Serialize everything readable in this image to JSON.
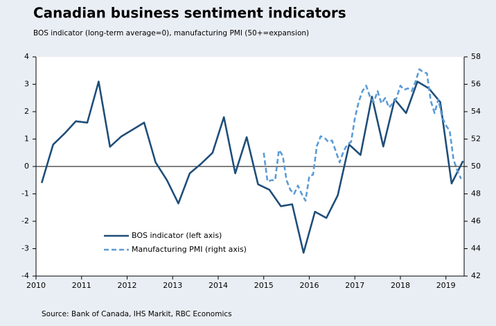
{
  "chart_data": {
    "type": "line",
    "title": "Canadian business sentiment indicators",
    "subtitle": "BOS indicator (long-term average=0), manufacturing PMI (50+=expansion)",
    "source": "Source: Bank of Canada, IHS Markit, RBC Economics",
    "xlim": [
      2010,
      2019.4
    ],
    "xticks": [
      2010,
      2011,
      2012,
      2013,
      2014,
      2015,
      2016,
      2017,
      2018,
      2019
    ],
    "ylim": [
      -4,
      4
    ],
    "yticks": [
      -4,
      -3,
      -2,
      -1,
      0,
      1,
      2,
      3,
      4
    ],
    "y2lim": [
      42,
      58
    ],
    "y2ticks": [
      42,
      44,
      46,
      48,
      50,
      52,
      54,
      56,
      58
    ],
    "legend": "lower-left",
    "series": [
      {
        "name": "BOS indicator (left axis)",
        "color": "#1f4e79",
        "axis": "y",
        "x": [
          2010.125,
          2010.375,
          2010.625,
          2010.875,
          2011.125,
          2011.375,
          2011.625,
          2011.875,
          2012.125,
          2012.375,
          2012.625,
          2012.875,
          2013.125,
          2013.375,
          2013.625,
          2013.875,
          2014.125,
          2014.375,
          2014.625,
          2014.875,
          2015.125,
          2015.375,
          2015.625,
          2015.875,
          2016.125,
          2016.375,
          2016.625,
          2016.875,
          2017.125,
          2017.375,
          2017.625,
          2017.875,
          2018.125,
          2018.375,
          2018.625,
          2018.875,
          2019.125,
          2019.375
        ],
        "values": [
          -0.6,
          0.8,
          1.2,
          1.65,
          1.6,
          3.1,
          0.72,
          1.1,
          1.35,
          1.6,
          0.15,
          -0.5,
          -1.35,
          -0.25,
          0.1,
          0.5,
          1.8,
          -0.25,
          1.07,
          -0.65,
          -0.85,
          -1.45,
          -1.38,
          -3.15,
          -1.65,
          -1.88,
          -1.05,
          0.8,
          0.42,
          2.55,
          0.73,
          2.45,
          1.95,
          3.1,
          2.85,
          2.35,
          -0.62,
          0.2
        ]
      },
      {
        "name": "Manufacturing PMI (right axis)",
        "color": "#5b9bd5",
        "axis": "y2",
        "dashed": true,
        "x": [
          2015,
          2015.083,
          2015.167,
          2015.25,
          2015.333,
          2015.417,
          2015.5,
          2015.583,
          2015.667,
          2015.75,
          2015.833,
          2015.917,
          2016,
          2016.083,
          2016.167,
          2016.25,
          2016.333,
          2016.417,
          2016.5,
          2016.583,
          2016.667,
          2016.75,
          2016.833,
          2016.917,
          2017,
          2017.083,
          2017.167,
          2017.25,
          2017.333,
          2017.417,
          2017.5,
          2017.583,
          2017.667,
          2017.75,
          2017.833,
          2017.917,
          2018,
          2018.083,
          2018.167,
          2018.25,
          2018.333,
          2018.417,
          2018.5,
          2018.583,
          2018.667,
          2018.75,
          2018.833,
          2018.917,
          2019,
          2019.083,
          2019.167,
          2019.25,
          2019.333
        ],
        "values": [
          51.0,
          48.9,
          49.0,
          49.0,
          51.2,
          50.8,
          49.0,
          48.3,
          48.0,
          48.6,
          48.0,
          47.5,
          49.3,
          49.4,
          51.5,
          52.2,
          52.1,
          51.8,
          51.9,
          51.1,
          50.3,
          51.1,
          51.6,
          51.8,
          53.5,
          54.7,
          55.5,
          55.9,
          55.1,
          54.7,
          55.5,
          54.6,
          55.0,
          54.3,
          54.6,
          55.0,
          55.9,
          55.6,
          55.7,
          55.5,
          56.2,
          57.1,
          56.9,
          56.8,
          54.8,
          53.9,
          54.9,
          53.6,
          53.0,
          52.6,
          50.5,
          49.7,
          49.1
        ]
      }
    ]
  }
}
